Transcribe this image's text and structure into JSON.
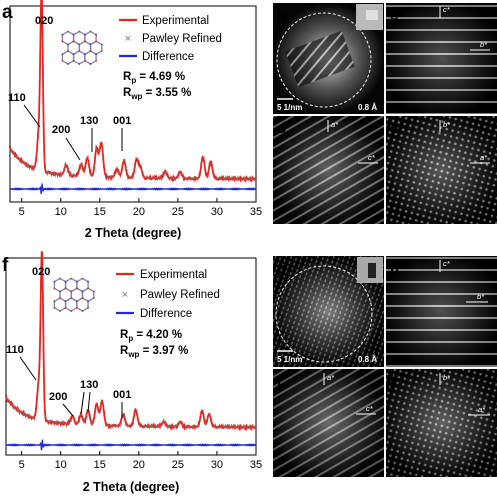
{
  "figure": {
    "panels": [
      {
        "letter": "a",
        "legend": [
          "Experimental",
          "Pawley Refined",
          "Difference"
        ],
        "stats": [
          "R",
          "p",
          " = 4.69 %",
          "R",
          "wp",
          " = 3.55 %"
        ],
        "peak_labels": [
          "020",
          "110",
          "200",
          "130",
          "001"
        ]
      },
      {
        "letter": "f",
        "legend": [
          "Experimental",
          "Pawley Refined",
          "Difference"
        ],
        "stats": [
          "R",
          "p",
          " = 4.20 %",
          "R",
          "wp",
          " = 3.97 %"
        ],
        "peak_labels": [
          "020",
          "110",
          "200",
          "130",
          "001"
        ]
      }
    ],
    "image_panels": [
      {
        "letter": "b",
        "scale": "5 1/nm",
        "res": "0.8 Å",
        "dirs": [
          "c*",
          "b*"
        ]
      },
      {
        "letter": "c",
        "dirs": [
          "c*",
          "b*"
        ]
      },
      {
        "letter": "d",
        "dirs": [
          "a*",
          "c*"
        ]
      },
      {
        "letter": "e",
        "dirs": [
          "b*",
          "a*"
        ]
      },
      {
        "letter": "g",
        "scale": "5 1/nm",
        "res": "0.8 Å",
        "dirs": [
          "c*",
          "b*"
        ]
      },
      {
        "letter": "h",
        "dirs": [
          "c*",
          "b*"
        ]
      },
      {
        "letter": "i",
        "dirs": [
          "a*",
          "c*"
        ]
      },
      {
        "letter": "j",
        "dirs": [
          "b*",
          "a*"
        ]
      }
    ]
  },
  "chart_data": [
    {
      "type": "line",
      "title": "",
      "xlabel": "2 Theta (degree)",
      "ylabel": "",
      "xlim": [
        3.5,
        35
      ],
      "xticks": [
        5,
        10,
        15,
        20,
        25,
        30,
        35
      ],
      "series": [
        {
          "name": "Experimental",
          "color": "#e8221d",
          "peaks": [
            [
              7.55,
              100
            ],
            [
              7.2,
              22
            ],
            [
              10.7,
              6
            ],
            [
              12.6,
              7
            ],
            [
              13.4,
              11
            ],
            [
              14.6,
              17
            ],
            [
              15.2,
              20
            ],
            [
              17.2,
              5
            ],
            [
              18.1,
              10
            ],
            [
              19.7,
              11
            ],
            [
              20.2,
              6
            ],
            [
              23.4,
              4
            ],
            [
              25.3,
              4
            ],
            [
              28.2,
              13
            ],
            [
              29.2,
              10
            ]
          ]
        },
        {
          "name": "Pawley Refined",
          "color": "#777777"
        },
        {
          "name": "Difference",
          "color": "#1f2bd6"
        }
      ],
      "annotations": [
        "020",
        "110",
        "200",
        "130",
        "001"
      ]
    },
    {
      "type": "line",
      "title": "",
      "xlabel": "2 Theta (degree)",
      "ylabel": "",
      "xlim": [
        3,
        35
      ],
      "xticks": [
        5,
        10,
        15,
        20,
        25,
        30,
        35
      ],
      "series": [
        {
          "name": "Experimental",
          "color": "#e8221d",
          "peaks": [
            [
              7.6,
              100
            ],
            [
              7.2,
              22
            ],
            [
              11.5,
              5
            ],
            [
              12.6,
              6
            ],
            [
              13.5,
              9
            ],
            [
              14.6,
              13
            ],
            [
              15.3,
              15
            ],
            [
              18.0,
              7
            ],
            [
              19.6,
              10
            ],
            [
              23.2,
              3
            ],
            [
              25.3,
              3
            ],
            [
              28.1,
              10
            ],
            [
              29.0,
              8
            ]
          ]
        },
        {
          "name": "Pawley Refined",
          "color": "#777777"
        },
        {
          "name": "Difference",
          "color": "#1f2bd6"
        }
      ],
      "annotations": [
        "020",
        "110",
        "200",
        "130",
        "001"
      ]
    }
  ]
}
